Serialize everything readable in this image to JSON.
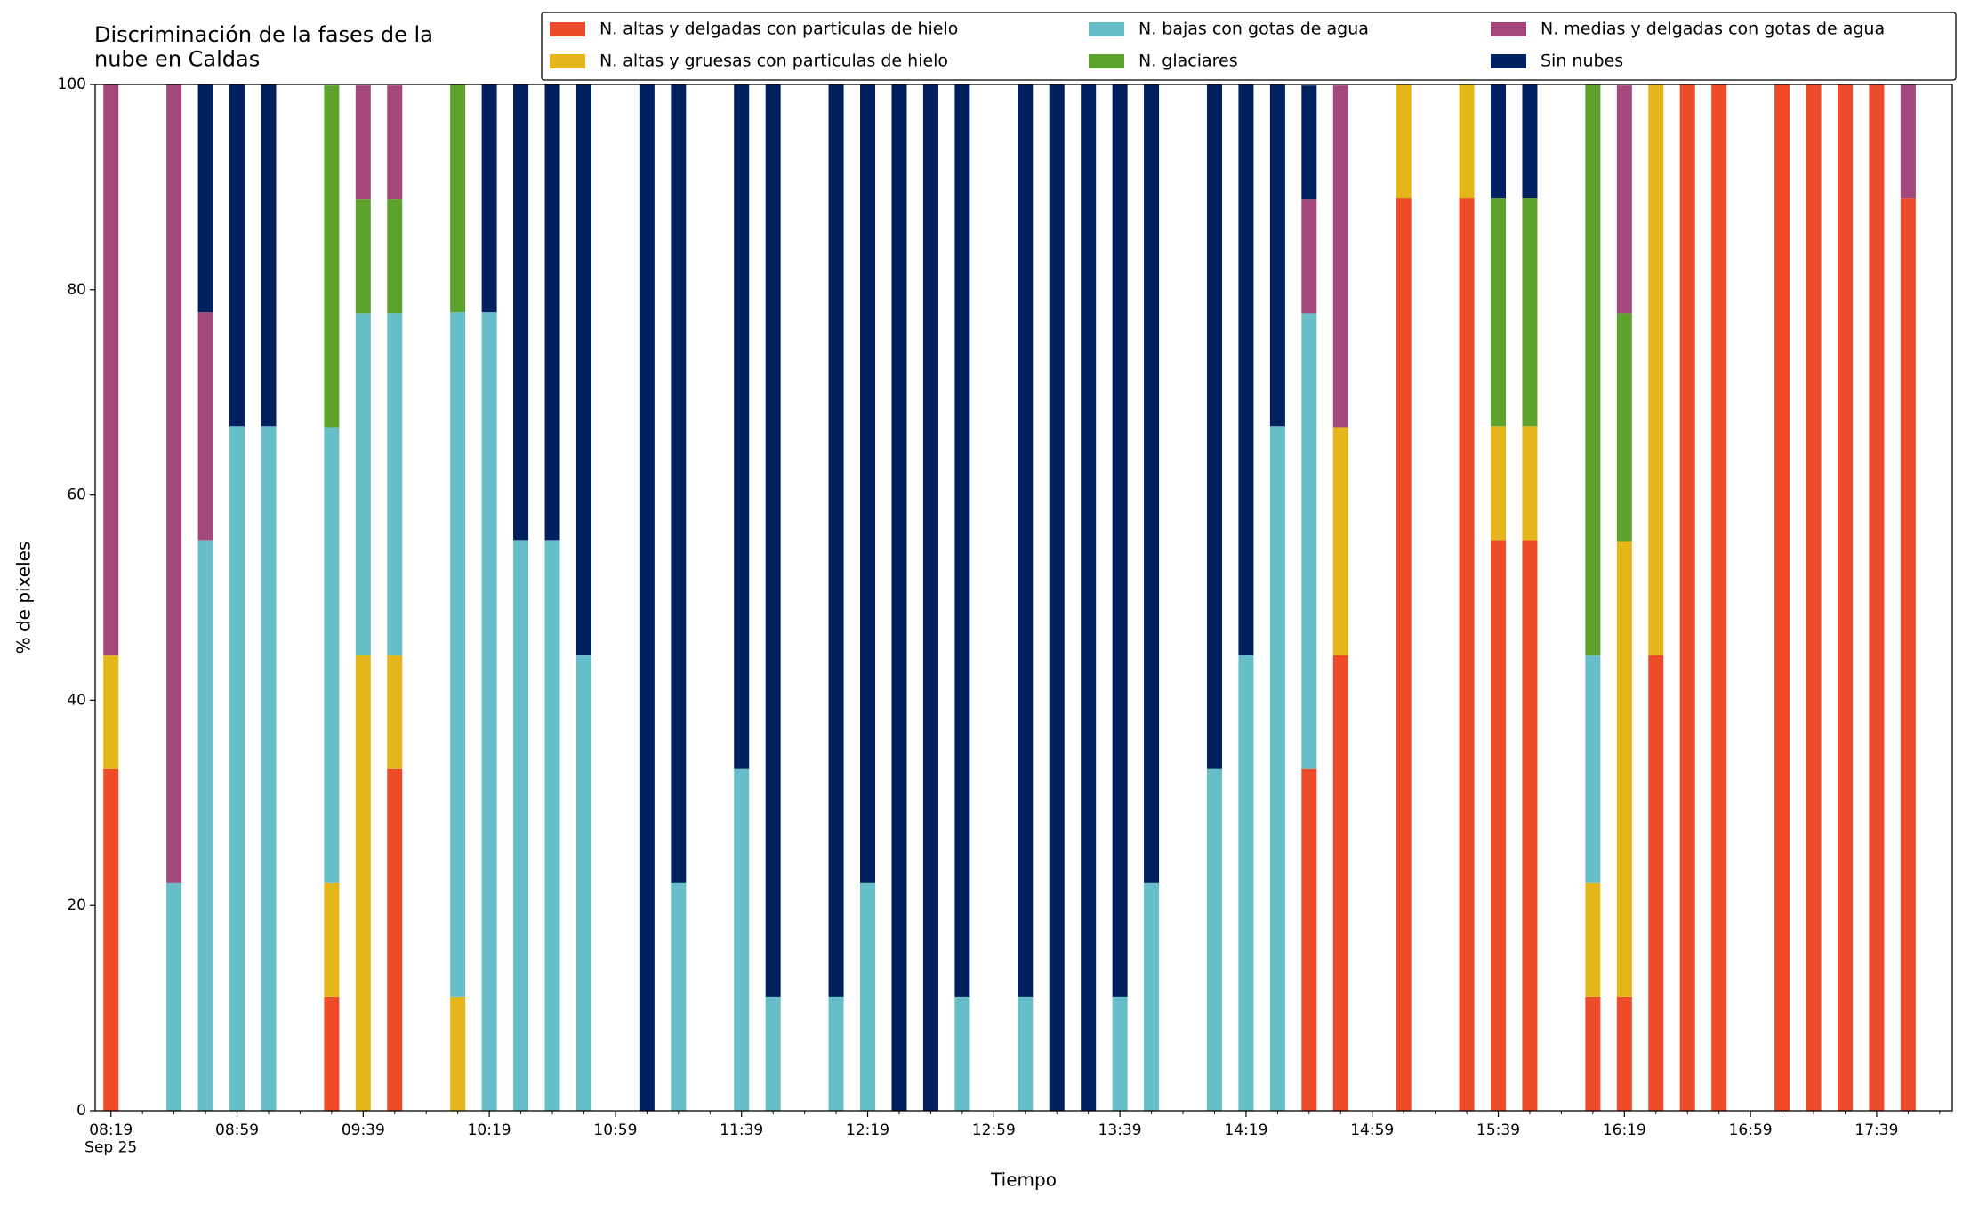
{
  "chart_data": {
    "type": "stacked_bar",
    "title": "Discriminación de la fases de la\nnube en Caldas",
    "x_label": "Tiempo",
    "y_label": "% de pixeles",
    "x": [
      "08:19",
      "08:39",
      "08:49",
      "08:59",
      "09:09",
      "09:29",
      "09:39",
      "09:49",
      "10:09",
      "10:19",
      "10:29",
      "10:39",
      "10:49",
      "11:09",
      "11:19",
      "11:39",
      "11:49",
      "12:09",
      "12:19",
      "12:29",
      "12:39",
      "12:49",
      "13:09",
      "13:19",
      "13:29",
      "13:39",
      "13:49",
      "14:09",
      "14:19",
      "14:29",
      "14:39",
      "14:49",
      "15:09",
      "15:29",
      "15:39",
      "15:49",
      "16:09",
      "16:19",
      "16:29",
      "16:39",
      "16:49",
      "17:09",
      "17:19",
      "17:29",
      "17:39",
      "17:49"
    ],
    "series": [
      {
        "name": "N. altas y delgadas con particulas de hielo",
        "color": "#ee4b2b",
        "values": [
          33.3,
          0,
          0,
          0,
          0,
          11.1,
          0,
          33.3,
          0,
          0,
          0,
          0,
          0,
          0,
          0,
          0,
          0,
          0,
          0,
          0,
          0,
          0,
          0,
          0,
          0,
          0,
          0,
          0,
          0,
          0,
          33.3,
          44.4,
          88.9,
          88.9,
          55.6,
          55.6,
          11.1,
          11.1,
          44.4,
          100,
          100,
          100,
          100,
          100,
          100,
          88.9
        ]
      },
      {
        "name": "N. altas y gruesas con particulas de hielo",
        "color": "#e5b61a",
        "values": [
          11.1,
          0,
          0,
          0,
          0,
          11.1,
          44.4,
          11.1,
          11.1,
          0,
          0,
          0,
          0,
          0,
          0,
          0,
          0,
          0,
          0,
          0,
          0,
          0,
          0,
          0,
          0,
          0,
          0,
          0,
          0,
          0,
          0,
          22.2,
          11.1,
          11.1,
          11.1,
          11.1,
          11.1,
          44.4,
          55.6,
          0,
          0,
          0,
          0,
          0,
          0,
          0
        ]
      },
      {
        "name": "N. bajas con gotas de agua",
        "color": "#66bec9",
        "values": [
          0,
          22.2,
          55.6,
          66.7,
          66.7,
          44.4,
          33.3,
          33.3,
          66.7,
          77.8,
          55.6,
          55.6,
          44.4,
          0,
          22.2,
          33.3,
          11.1,
          11.1,
          22.2,
          0,
          0,
          11.1,
          11.1,
          0,
          0,
          11.1,
          22.2,
          33.3,
          44.4,
          66.7,
          44.4,
          0,
          0,
          0,
          0,
          0,
          22.2,
          0,
          0,
          0,
          0,
          0,
          0,
          0,
          0,
          0
        ]
      },
      {
        "name": "N. glaciares",
        "color": "#5ea22e",
        "values": [
          0,
          0,
          0,
          0,
          0,
          33.3,
          11.1,
          11.1,
          22.2,
          0,
          0,
          0,
          0,
          0,
          0,
          0,
          0,
          0,
          0,
          0,
          0,
          0,
          0,
          0,
          0,
          0,
          0,
          0,
          0,
          0,
          0,
          0,
          0,
          0,
          22.2,
          22.2,
          55.6,
          22.2,
          0,
          0,
          0,
          0,
          0,
          0,
          0,
          0
        ]
      },
      {
        "name": "N. medias y delgadas con gotas de agua",
        "color": "#a4477a",
        "values": [
          55.6,
          77.8,
          22.2,
          0,
          0,
          0,
          11.1,
          11.1,
          0,
          0,
          0,
          0,
          0,
          0,
          0,
          0,
          0,
          0,
          0,
          0,
          0,
          0,
          0,
          0,
          0,
          0,
          0,
          0,
          0,
          0,
          11.1,
          33.3,
          0,
          0,
          0,
          0,
          0,
          22.2,
          0,
          0,
          0,
          0,
          0,
          0,
          0,
          11.1
        ]
      },
      {
        "name": "Sin nubes",
        "color": "#00205f",
        "values": [
          0,
          0,
          22.2,
          33.3,
          33.3,
          0,
          0,
          0,
          0,
          22.2,
          44.4,
          44.4,
          55.6,
          100,
          77.8,
          66.7,
          88.9,
          88.9,
          77.8,
          100,
          100,
          88.9,
          88.9,
          100,
          100,
          88.9,
          77.8,
          66.7,
          55.6,
          33.3,
          11.1,
          0,
          0,
          0,
          11.1,
          11.1,
          0,
          0,
          0,
          0,
          0,
          0,
          0,
          0,
          0,
          0
        ]
      }
    ],
    "xlim": [
      "08:14",
      "18:03"
    ],
    "xticks": [
      {
        "value": "08:19",
        "label": "08:19\nSep 25"
      },
      "08:59",
      "09:39",
      "10:19",
      "10:59",
      "11:39",
      "12:19",
      "12:59",
      "13:39",
      "14:19",
      "14:59",
      "15:39",
      "16:19",
      "16:59",
      "17:39"
    ],
    "xminorticks": [
      "08:29",
      "08:39",
      "08:49",
      "09:09",
      "09:19",
      "09:29",
      "09:49",
      "09:59",
      "10:09",
      "10:29",
      "10:39",
      "10:49",
      "11:09",
      "11:19",
      "11:29",
      "11:49",
      "11:59",
      "12:09",
      "12:29",
      "12:39",
      "12:49",
      "13:09",
      "13:19",
      "13:29",
      "13:49",
      "13:59",
      "14:09",
      "14:29",
      "14:39",
      "14:49",
      "15:09",
      "15:19",
      "15:29",
      "15:49",
      "15:59",
      "16:09",
      "16:29",
      "16:39",
      "16:49",
      "17:09",
      "17:19",
      "17:29",
      "17:49",
      "17:59"
    ],
    "ylim": [
      0,
      100
    ],
    "yticks": [
      0,
      20,
      40,
      60,
      80,
      100
    ],
    "legend": "top-right",
    "legend_columns": 3
  }
}
